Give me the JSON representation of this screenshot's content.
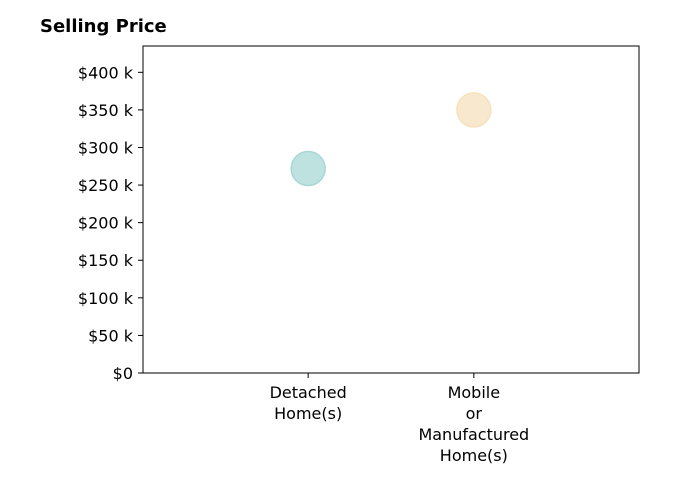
{
  "chart_data": {
    "type": "scatter",
    "title": "Selling Price",
    "xlabel": "",
    "ylabel": "",
    "categories": [
      [
        "Detached",
        "Home(s)"
      ],
      [
        "Mobile",
        "or",
        "Manufactured",
        "Home(s)"
      ]
    ],
    "values": [
      272000,
      350000
    ],
    "colors": [
      "#a8d8d4",
      "#f5e2bd"
    ],
    "yticks": [
      0,
      50000,
      100000,
      150000,
      200000,
      250000,
      300000,
      350000,
      400000
    ],
    "ytick_labels": [
      "$0",
      "$50 k",
      "$100 k",
      "$150 k",
      "$200 k",
      "$250 k",
      "$300 k",
      "$350 k",
      "$400 k"
    ],
    "ylim": [
      0,
      435000
    ],
    "grid": false,
    "legend": "none"
  }
}
